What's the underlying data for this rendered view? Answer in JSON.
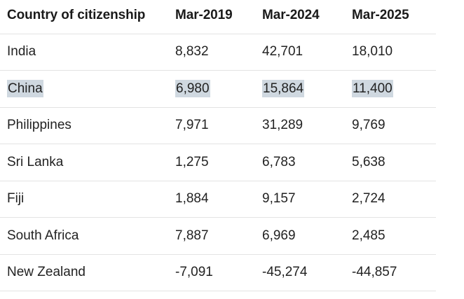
{
  "table": {
    "headers": [
      "Country of citizenship",
      "Mar-2019",
      "Mar-2024",
      "Mar-2025"
    ],
    "rows": [
      {
        "country": "India",
        "values": [
          "8,832",
          "42,701",
          "18,010"
        ],
        "highlighted": false
      },
      {
        "country": "China",
        "values": [
          "6,980",
          "15,864",
          "11,400"
        ],
        "highlighted": true
      },
      {
        "country": "Philippines",
        "values": [
          "7,971",
          "31,289",
          "9,769"
        ],
        "highlighted": false
      },
      {
        "country": "Sri Lanka",
        "values": [
          "1,275",
          "6,783",
          "5,638"
        ],
        "highlighted": false
      },
      {
        "country": "Fiji",
        "values": [
          "1,884",
          "9,157",
          "2,724"
        ],
        "highlighted": false
      },
      {
        "country": "South Africa",
        "values": [
          "7,887",
          "6,969",
          "2,485"
        ],
        "highlighted": false
      },
      {
        "country": "New Zealand",
        "values": [
          "-7,091",
          "-45,274",
          "-44,857"
        ],
        "highlighted": false
      }
    ]
  },
  "colors": {
    "highlight": "#cfd8e0",
    "row_divider": "#e3e3e3",
    "text": "#222222"
  }
}
